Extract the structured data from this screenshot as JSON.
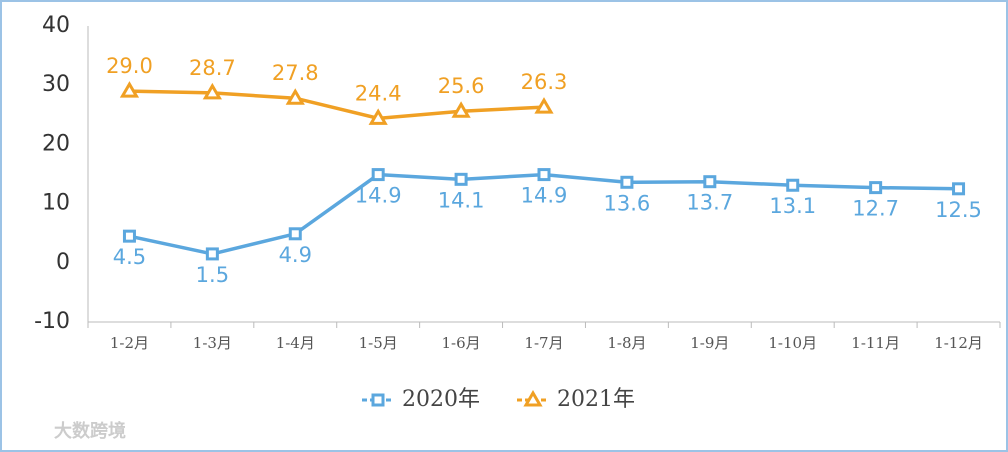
{
  "chart_data": {
    "type": "line",
    "categories": [
      "1-2月",
      "1-3月",
      "1-4月",
      "1-5月",
      "1-6月",
      "1-7月",
      "1-8月",
      "1-9月",
      "1-10月",
      "1-11月",
      "1-12月"
    ],
    "series": [
      {
        "name": "2020年",
        "color": "#5ba7de",
        "marker": "square",
        "values": [
          4.5,
          1.5,
          4.9,
          14.9,
          14.1,
          14.9,
          13.6,
          13.7,
          13.1,
          12.7,
          12.5
        ]
      },
      {
        "name": "2021年",
        "color": "#f0a024",
        "marker": "triangle",
        "values": [
          29.0,
          28.7,
          27.8,
          24.4,
          25.6,
          26.3,
          null,
          null,
          null,
          null,
          null
        ],
        "value_labels": [
          "29.0",
          "28.7",
          "27.8",
          "24.4",
          "25.6",
          "26.3",
          null,
          null,
          null,
          null,
          null
        ]
      }
    ],
    "ylim": [
      -10,
      40
    ],
    "yticks": [
      40,
      30,
      20,
      10,
      0,
      -10
    ],
    "grid": false,
    "legend": "bottom",
    "watermark": "大数跨境"
  }
}
